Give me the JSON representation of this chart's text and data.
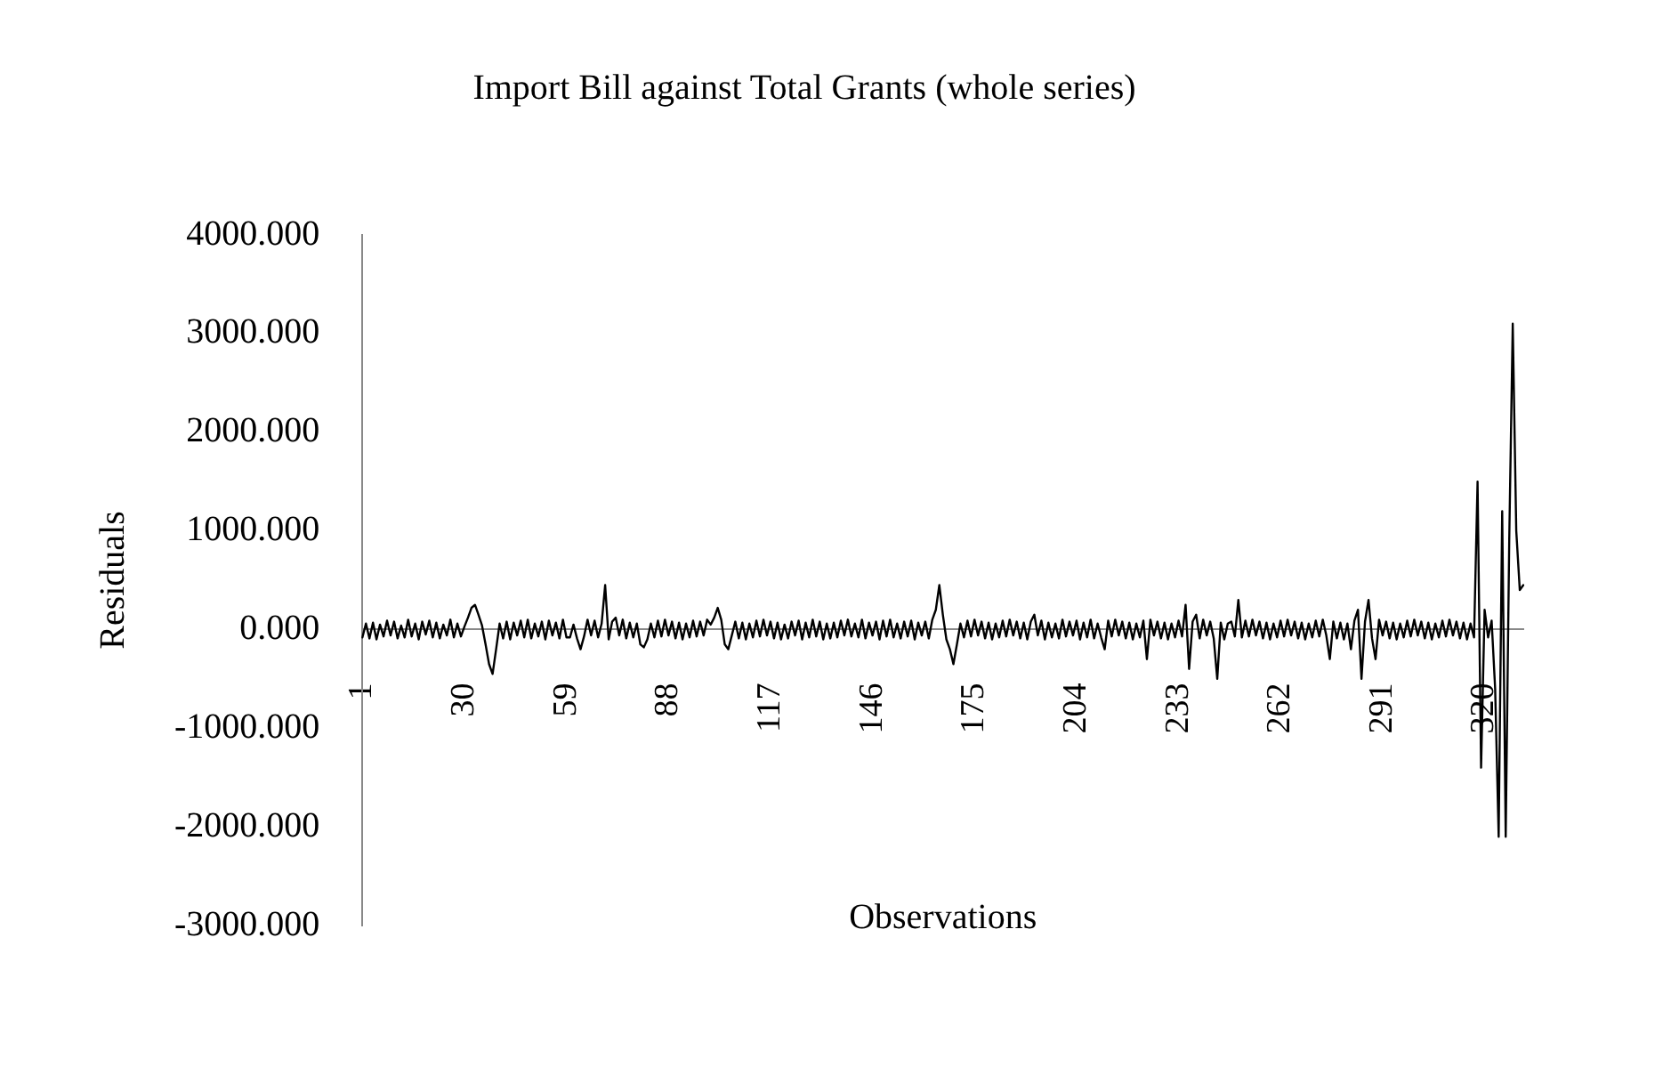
{
  "chart_data": {
    "type": "line",
    "title": "Import Bill against Total Grants (whole series)",
    "xlabel": "Observations",
    "ylabel": "Residuals",
    "categories": [
      "1",
      null,
      null,
      null,
      null,
      null,
      null,
      null,
      null,
      null,
      null,
      null,
      null,
      null,
      null,
      null,
      null,
      null,
      null,
      null,
      null,
      null,
      null,
      null,
      null,
      null,
      null,
      null,
      null,
      "30",
      null,
      null,
      null,
      null,
      null,
      null,
      null,
      null,
      null,
      null,
      null,
      null,
      null,
      null,
      null,
      null,
      null,
      null,
      null,
      null,
      null,
      null,
      null,
      null,
      null,
      null,
      null,
      null,
      "59",
      null,
      null,
      null,
      null,
      null,
      null,
      null,
      null,
      null,
      null,
      null,
      null,
      null,
      null,
      null,
      null,
      null,
      null,
      null,
      null,
      null,
      null,
      null,
      null,
      null,
      null,
      null,
      null,
      "88",
      null,
      null,
      null,
      null,
      null,
      null,
      null,
      null,
      null,
      null,
      null,
      null,
      null,
      null,
      null,
      null,
      null,
      null,
      null,
      null,
      null,
      null,
      null,
      null,
      null,
      null,
      null,
      null,
      "117",
      null,
      null,
      null,
      null,
      null,
      null,
      null,
      null,
      null,
      null,
      null,
      null,
      null,
      null,
      null,
      null,
      null,
      null,
      null,
      null,
      null,
      null,
      null,
      null,
      null,
      null,
      null,
      null,
      "146",
      null,
      null,
      null,
      null,
      null,
      null,
      null,
      null,
      null,
      null,
      null,
      null,
      null,
      null,
      null,
      null,
      null,
      null,
      null,
      null,
      null,
      null,
      null,
      null,
      null,
      null,
      null,
      null,
      "175",
      null,
      null,
      null,
      null,
      null,
      null,
      null,
      null,
      null,
      null,
      null,
      null,
      null,
      null,
      null,
      null,
      null,
      null,
      null,
      null,
      null,
      null,
      null,
      null,
      null,
      null,
      null,
      null,
      "204",
      null,
      null,
      null,
      null,
      null,
      null,
      null,
      null,
      null,
      null,
      null,
      null,
      null,
      null,
      null,
      null,
      null,
      null,
      null,
      null,
      null,
      null,
      null,
      null,
      null,
      null,
      null,
      null,
      "233",
      null,
      null,
      null,
      null,
      null,
      null,
      null,
      null,
      null,
      null,
      null,
      null,
      null,
      null,
      null,
      null,
      null,
      null,
      null,
      null,
      null,
      null,
      null,
      null,
      null,
      null,
      null,
      null,
      "262",
      null,
      null,
      null,
      null,
      null,
      null,
      null,
      null,
      null,
      null,
      null,
      null,
      null,
      null,
      null,
      null,
      null,
      null,
      null,
      null,
      null,
      null,
      null,
      null,
      null,
      null,
      null,
      null,
      "291",
      null,
      null,
      null,
      null,
      null,
      null,
      null,
      null,
      null,
      null,
      null,
      null,
      null,
      null,
      null,
      null,
      null,
      null,
      null,
      null,
      null,
      null,
      null,
      null,
      null,
      null,
      null,
      null,
      "320",
      null,
      null,
      null,
      null,
      null,
      null,
      null,
      null,
      null,
      null,
      null
    ],
    "series": [
      {
        "color": "#000000",
        "values": [
          -80,
          60,
          -90,
          70,
          -100,
          50,
          -70,
          90,
          -60,
          80,
          -90,
          40,
          -80,
          100,
          -70,
          60,
          -100,
          80,
          -50,
          90,
          -80,
          70,
          -90,
          50,
          -60,
          100,
          -80,
          60,
          -70,
          30,
          120,
          220,
          250,
          150,
          40,
          -150,
          -350,
          -450,
          -200,
          60,
          -90,
          80,
          -100,
          70,
          -60,
          90,
          -80,
          100,
          -90,
          60,
          -70,
          80,
          -100,
          90,
          -60,
          70,
          -90,
          100,
          -80,
          -80,
          50,
          -90,
          -200,
          -70,
          100,
          -60,
          90,
          -80,
          60,
          450,
          -100,
          80,
          120,
          -60,
          100,
          -90,
          70,
          -80,
          60,
          -150,
          -180,
          -100,
          60,
          -80,
          90,
          -70,
          100,
          -60,
          80,
          -90,
          70,
          -100,
          60,
          -80,
          90,
          -70,
          80,
          -60,
          100,
          50,
          120,
          220,
          100,
          -150,
          -200,
          -60,
          80,
          -90,
          70,
          -100,
          60,
          -80,
          90,
          -70,
          100,
          -60,
          80,
          -90,
          70,
          -100,
          50,
          -90,
          80,
          -60,
          90,
          -100,
          70,
          -80,
          100,
          -70,
          80,
          -100,
          60,
          -90,
          70,
          -80,
          90,
          -60,
          100,
          -70,
          60,
          -80,
          100,
          -90,
          70,
          -60,
          80,
          -100,
          90,
          -70,
          100,
          -80,
          60,
          -90,
          80,
          -70,
          90,
          -100,
          70,
          -60,
          80,
          -90,
          100,
          200,
          450,
          150,
          -100,
          -200,
          -350,
          -150,
          60,
          -80,
          90,
          -70,
          100,
          -60,
          80,
          -90,
          70,
          -100,
          60,
          -80,
          90,
          -70,
          100,
          -60,
          80,
          -90,
          70,
          -100,
          80,
          150,
          -60,
          90,
          -100,
          70,
          -80,
          60,
          -90,
          100,
          -70,
          80,
          -60,
          90,
          -100,
          70,
          -80,
          100,
          -90,
          60,
          -80,
          -200,
          90,
          -70,
          100,
          -60,
          80,
          -90,
          70,
          -100,
          60,
          -80,
          90,
          -300,
          100,
          -60,
          80,
          -90,
          70,
          -100,
          60,
          -80,
          90,
          -70,
          250,
          -400,
          80,
          150,
          -90,
          100,
          -60,
          80,
          -90,
          -500,
          70,
          -100,
          60,
          80,
          -70,
          300,
          -80,
          90,
          -70,
          100,
          -60,
          80,
          -90,
          70,
          -100,
          60,
          -80,
          90,
          -70,
          100,
          -60,
          80,
          -90,
          70,
          -100,
          60,
          -80,
          90,
          -70,
          100,
          -60,
          -300,
          80,
          -90,
          70,
          -100,
          60,
          -200,
          90,
          200,
          -500,
          80,
          300,
          -90,
          -300,
          100,
          -60,
          80,
          -90,
          70,
          -100,
          60,
          -80,
          90,
          -70,
          100,
          -60,
          80,
          -90,
          70,
          -100,
          60,
          -80,
          90,
          -70,
          100,
          -60,
          80,
          -90,
          70,
          -100,
          60,
          -80,
          1500,
          -1400,
          200,
          -80,
          90,
          -600,
          -2100,
          1200,
          -2100,
          900,
          3100,
          1000,
          400,
          450
        ]
      }
    ],
    "ylim": [
      -3000,
      4000
    ],
    "yticks": [
      {
        "value": -3000,
        "label": "-3000.000"
      },
      {
        "value": -2000,
        "label": "-2000.000"
      },
      {
        "value": -1000,
        "label": "-1000.000"
      },
      {
        "value": 0,
        "label": "0.000"
      },
      {
        "value": 1000,
        "label": "1000.000"
      },
      {
        "value": 2000,
        "label": "2000.000"
      },
      {
        "value": 3000,
        "label": "3000.000"
      },
      {
        "value": 4000,
        "label": "4000.000"
      }
    ],
    "legend": false,
    "marker": "none",
    "line_style": "solid"
  }
}
